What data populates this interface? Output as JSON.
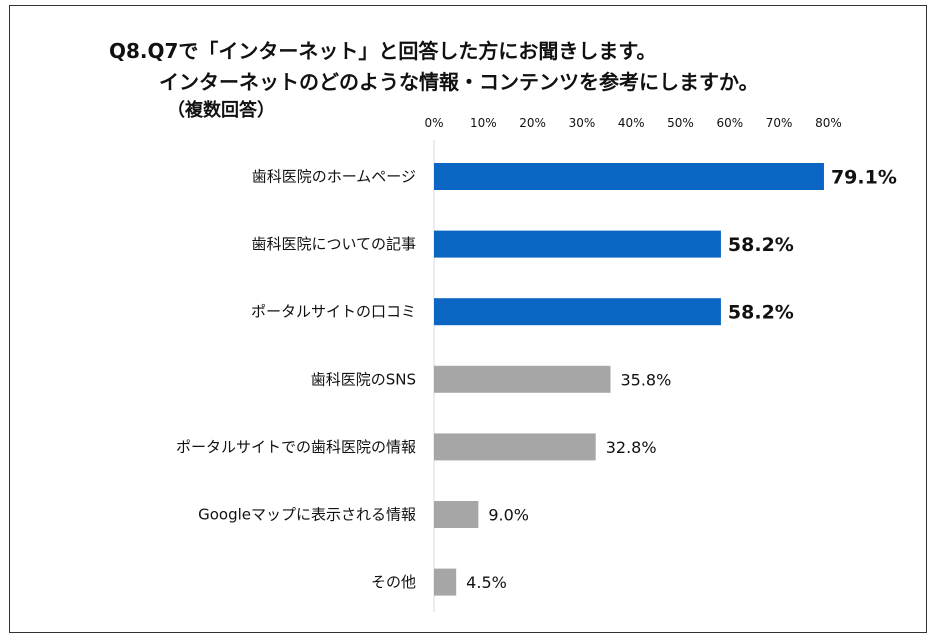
{
  "title_lines": [
    "Q8.Q7で「インターネット」と回答した方にお聞きします。",
    "インターネットのどのような情報・コンテンツを参考にしますか。",
    "（複数回答）"
  ],
  "colors": {
    "highlight": "#0a66c2",
    "normal": "#a6a6a6",
    "axis": "#d9d9d9",
    "text": "#111111"
  },
  "chart_data": {
    "type": "bar",
    "orientation": "horizontal",
    "xlim": [
      0,
      80
    ],
    "x_ticks": [
      "0%",
      "10%",
      "20%",
      "30%",
      "40%",
      "50%",
      "60%",
      "70%",
      "80%"
    ],
    "tick_values": [
      0,
      10,
      20,
      30,
      40,
      50,
      60,
      70,
      80
    ],
    "grid": false,
    "categories": [
      "歯科医院のホームページ",
      "歯科医院についての記事",
      "ポータルサイトの口コミ",
      "歯科医院のSNS",
      "ポータルサイトでの歯科医院の情報",
      "Googleマップに表示される情報",
      "その他"
    ],
    "values": [
      79.1,
      58.2,
      58.2,
      35.8,
      32.8,
      9.0,
      4.5
    ],
    "value_labels": [
      "79.1%",
      "58.2%",
      "58.2%",
      "35.8%",
      "32.8%",
      "9.0%",
      "4.5%"
    ],
    "highlighted": [
      true,
      true,
      true,
      false,
      false,
      false,
      false
    ]
  }
}
